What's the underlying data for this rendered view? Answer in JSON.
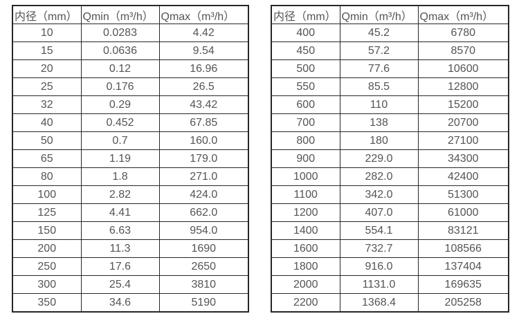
{
  "colors": {
    "background": "#ffffff",
    "border": "#262626",
    "text": "#545454"
  },
  "chart_data": [
    {
      "type": "table",
      "title": "",
      "headers": [
        "内径（mm）",
        "Qmin（m³/h）",
        "Qmax（m³/h）"
      ],
      "rows": [
        [
          "10",
          "0.0283",
          "4.42"
        ],
        [
          "15",
          "0.0636",
          "9.54"
        ],
        [
          "20",
          "0.12",
          "16.96"
        ],
        [
          "25",
          "0.176",
          "26.5"
        ],
        [
          "32",
          "0.29",
          "43.42"
        ],
        [
          "40",
          "0.452",
          "67.85"
        ],
        [
          "50",
          "0.7",
          "160.0"
        ],
        [
          "65",
          "1.19",
          "179.0"
        ],
        [
          "80",
          "1.8",
          "271.0"
        ],
        [
          "100",
          "2.82",
          "424.0"
        ],
        [
          "125",
          "4.41",
          "662.0"
        ],
        [
          "150",
          "6.63",
          "954.0"
        ],
        [
          "200",
          "11.3",
          "1690"
        ],
        [
          "250",
          "17.6",
          "2650"
        ],
        [
          "300",
          "25.4",
          "3810"
        ],
        [
          "350",
          "34.6",
          "5190"
        ]
      ]
    },
    {
      "type": "table",
      "title": "",
      "headers": [
        "内径（mm）",
        "Qmin（m³/h）",
        "Qmax（m³/h）"
      ],
      "rows": [
        [
          "400",
          "45.2",
          "6780"
        ],
        [
          "450",
          "57.2",
          "8570"
        ],
        [
          "500",
          "77.6",
          "10600"
        ],
        [
          "550",
          "85.5",
          "12800"
        ],
        [
          "600",
          "110",
          "15200"
        ],
        [
          "700",
          "138",
          "20700"
        ],
        [
          "800",
          "180",
          "27100"
        ],
        [
          "900",
          "229.0",
          "34300"
        ],
        [
          "1000",
          "282.0",
          "42400"
        ],
        [
          "1100",
          "342.0",
          "51300"
        ],
        [
          "1200",
          "407.0",
          "61000"
        ],
        [
          "1400",
          "554.1",
          "83121"
        ],
        [
          "1600",
          "732.7",
          "108566"
        ],
        [
          "1800",
          "916.0",
          "137404"
        ],
        [
          "2000",
          "1131.0",
          "169635"
        ],
        [
          "2200",
          "1368.4",
          "205258"
        ]
      ]
    }
  ]
}
